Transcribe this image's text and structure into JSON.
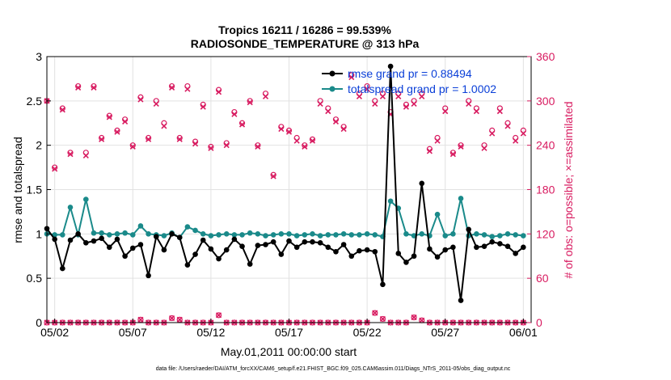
{
  "figure": {
    "title_line1": "Tropics 16211 / 16286 = 99.539%",
    "title_line2": "RADIOSONDE_TEMPERATURE @ 313 hPa",
    "footer": "data file: /Users/raeder/DAI/ATM_forcXX/CAM6_setup/f.e21.FHIST_BGC.f09_025.CAM6assim.011/Diags_NTrS_2011-05/obs_diag_output.nc"
  },
  "colors": {
    "rmse": "#000000",
    "spread": "#1a8a8a",
    "obs": "#d81b60",
    "legend_text": "#0a3fd8",
    "grid": "#e2e2e2"
  },
  "chart_data": {
    "type": "line",
    "xlabel": "May.01,2011 00:00:00 start",
    "ylabel_left": "rmse and totalspread",
    "ylabel_right": "# of obs: o=possible; ×=assimilated",
    "x_ticks": [
      "05/02",
      "05/07",
      "05/12",
      "05/17",
      "05/22",
      "05/27",
      "06/01"
    ],
    "x_tick_days": [
      2,
      7,
      12,
      17,
      22,
      27,
      32
    ],
    "ylim_left": [
      0,
      3
    ],
    "yticks_left": [
      "0",
      "0.5",
      "1",
      "1.5",
      "2",
      "2.5",
      "3"
    ],
    "ylim_right": [
      0,
      360
    ],
    "yticks_right": [
      "0",
      "60",
      "120",
      "180",
      "240",
      "300",
      "360"
    ],
    "xlim_days": [
      1.5,
      32.5
    ],
    "x_days": [
      1.5,
      2,
      2.5,
      3,
      3.5,
      4,
      4.5,
      5,
      5.5,
      6,
      6.5,
      7,
      7.5,
      8,
      8.5,
      9,
      9.5,
      10,
      10.5,
      11,
      11.5,
      12,
      12.5,
      13,
      13.5,
      14,
      14.5,
      15,
      15.5,
      16,
      16.5,
      17,
      17.5,
      18,
      18.5,
      19,
      19.5,
      20,
      20.5,
      21,
      21.5,
      22,
      22.5,
      23,
      23.5,
      24,
      24.5,
      25,
      25.5,
      26,
      26.5,
      27,
      27.5,
      28,
      28.5,
      29,
      29.5,
      30,
      30.5,
      31,
      31.5,
      32
    ],
    "series": [
      {
        "name": "rmse",
        "legend": "rmse grand pr = 0.88494",
        "axis": "left",
        "values": [
          1.06,
          0.94,
          0.61,
          0.93,
          1.0,
          0.9,
          0.92,
          0.95,
          0.85,
          0.94,
          0.75,
          0.84,
          0.88,
          0.53,
          0.97,
          0.82,
          1.0,
          0.96,
          0.65,
          0.77,
          0.93,
          0.83,
          0.72,
          0.82,
          0.94,
          0.86,
          0.66,
          0.87,
          0.88,
          0.91,
          0.77,
          0.92,
          0.85,
          0.91,
          0.91,
          0.9,
          0.85,
          0.8,
          0.88,
          0.75,
          0.81,
          0.82,
          0.8,
          0.43,
          2.89,
          0.78,
          0.68,
          0.75,
          1.57,
          0.83,
          0.74,
          0.82,
          0.85,
          0.25,
          1.05,
          0.85,
          0.86,
          0.91,
          0.89,
          0.86,
          0.78,
          0.85
        ]
      },
      {
        "name": "totalspread",
        "legend": "totalspread grand pr = 1.0002",
        "axis": "left",
        "values": [
          1.0,
          0.99,
          0.99,
          1.3,
          0.99,
          1.39,
          1.01,
          1.01,
          0.99,
          1.0,
          1.01,
          0.99,
          1.09,
          1.0,
          0.99,
          0.98,
          1.01,
          0.96,
          1.08,
          1.04,
          1.0,
          0.98,
          0.99,
          1.0,
          0.99,
          0.99,
          1.01,
          1.0,
          0.98,
          0.99,
          1.0,
          1.0,
          0.98,
          0.99,
          1.0,
          0.98,
          0.99,
          0.99,
          1.0,
          0.99,
          0.99,
          1.0,
          0.99,
          0.97,
          1.37,
          1.29,
          1.0,
          0.98,
          1.0,
          0.98,
          1.22,
          0.98,
          1.0,
          1.4,
          0.98,
          1.0,
          0.99,
          0.97,
          0.98,
          1.0,
          0.99,
          0.98
        ]
      },
      {
        "name": "obs_possible",
        "axis": "right",
        "values": [
          300,
          210,
          290,
          230,
          320,
          230,
          320,
          250,
          280,
          260,
          275,
          240,
          305,
          250,
          300,
          270,
          320,
          250,
          320,
          245,
          295,
          238,
          315,
          243,
          285,
          270,
          300,
          240,
          310,
          200,
          265,
          260,
          250,
          240,
          248,
          300,
          290,
          275,
          265,
          335,
          310,
          320,
          300,
          310,
          285,
          310,
          295,
          300,
          310,
          235,
          250,
          290,
          230,
          240,
          300,
          290,
          240,
          260,
          290,
          270,
          250,
          260
        ]
      },
      {
        "name": "obs_assimilated",
        "axis": "right",
        "values": [
          300,
          208,
          288,
          228,
          318,
          226,
          318,
          248,
          278,
          258,
          272,
          238,
          302,
          248,
          296,
          266,
          318,
          248,
          316,
          242,
          292,
          236,
          312,
          240,
          282,
          268,
          298,
          238,
          306,
          198,
          262,
          258,
          246,
          238,
          246,
          296,
          286,
          272,
          262,
          332,
          306,
          316,
          296,
          306,
          282,
          306,
          292,
          296,
          306,
          232,
          246,
          286,
          228,
          238,
          296,
          286,
          236,
          256,
          286,
          266,
          246,
          256
        ]
      },
      {
        "name": "rejected_possible",
        "axis": "right",
        "values": [
          0,
          0,
          0,
          0,
          0,
          0,
          0,
          0,
          0,
          0,
          0,
          0,
          4,
          0,
          0,
          0,
          6,
          4,
          0,
          0,
          0,
          0,
          10,
          0,
          0,
          0,
          0,
          0,
          0,
          0,
          0,
          0,
          0,
          0,
          0,
          0,
          0,
          0,
          0,
          0,
          0,
          0,
          13,
          5,
          0,
          0,
          0,
          7,
          3,
          0,
          0,
          0,
          0,
          0,
          0,
          0,
          0,
          0,
          0,
          0,
          0,
          0
        ]
      }
    ],
    "grid": true,
    "legend_position": "top-right"
  }
}
